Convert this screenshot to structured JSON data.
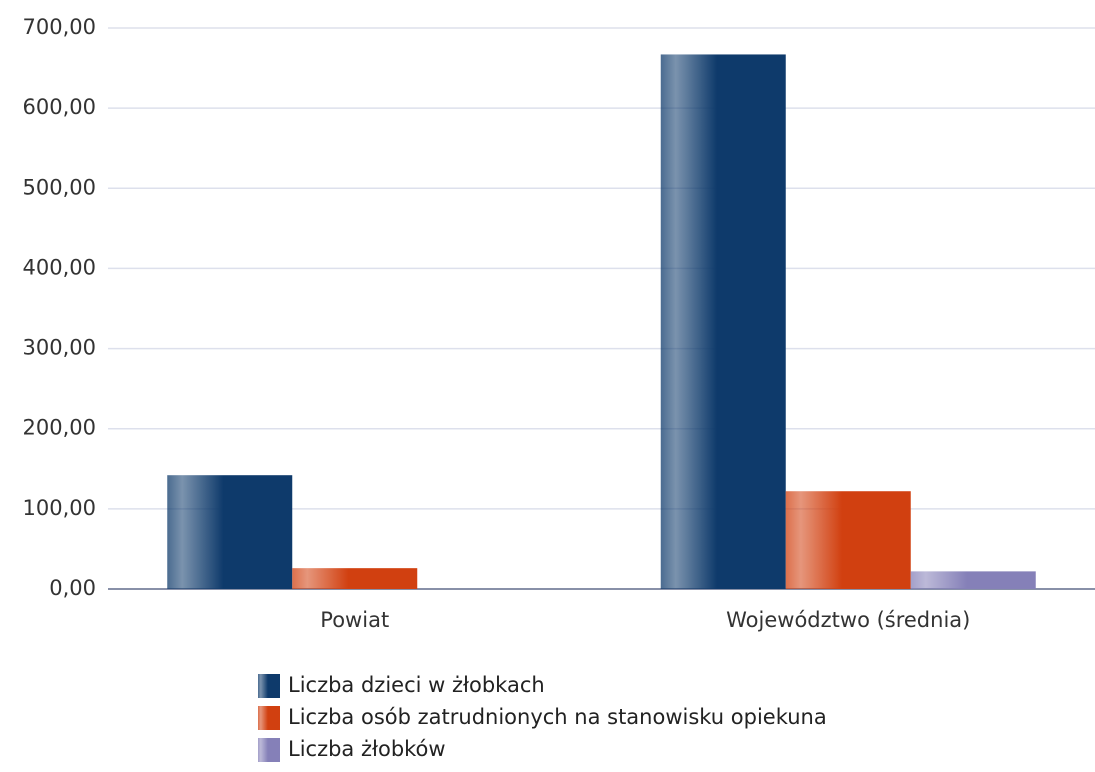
{
  "chart_data": {
    "type": "bar",
    "categories": [
      "Powiat",
      "Województwo (średnia)"
    ],
    "series": [
      {
        "name": "Liczba dzieci w żłobkach",
        "color": "#0e3a6b",
        "values": [
          142,
          667
        ]
      },
      {
        "name": "Liczba osób zatrudnionych na stanowisku opiekuna",
        "color": "#d14010",
        "values": [
          26,
          122
        ]
      },
      {
        "name": "Liczba żłobków",
        "color": "#8580b8",
        "values": [
          0,
          22
        ]
      }
    ],
    "ylim": [
      0,
      700
    ],
    "yticks": [
      {
        "value": 0,
        "label": "0,00"
      },
      {
        "value": 100,
        "label": "100,00"
      },
      {
        "value": 200,
        "label": "200,00"
      },
      {
        "value": 300,
        "label": "300,00"
      },
      {
        "value": 400,
        "label": "400,00"
      },
      {
        "value": 500,
        "label": "500,00"
      },
      {
        "value": 600,
        "label": "600,00"
      },
      {
        "value": 700,
        "label": "700,00"
      }
    ],
    "grid": true
  }
}
